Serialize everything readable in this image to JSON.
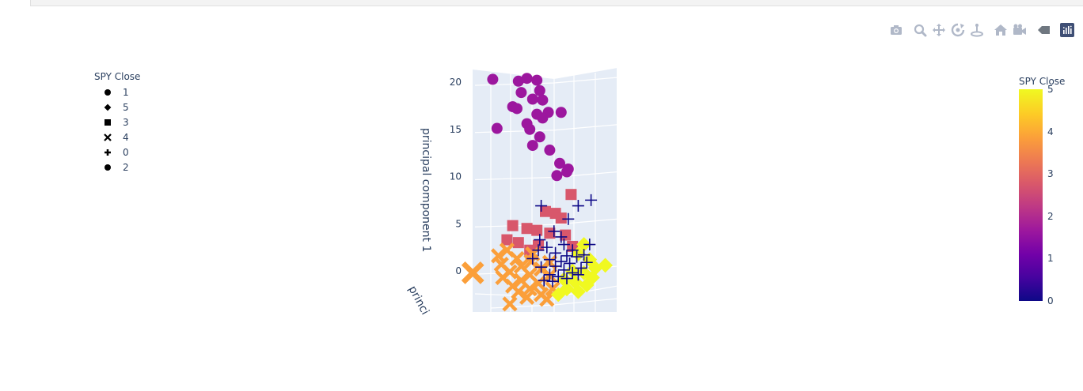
{
  "toolbar": {
    "buttons": [
      {
        "name": "camera-icon",
        "title": "Download plot as a png"
      },
      {
        "name": "zoom-icon",
        "title": "Zoom"
      },
      {
        "name": "pan-icon",
        "title": "Pan"
      },
      {
        "name": "orbit-rotation-icon",
        "title": "Orbital rotation"
      },
      {
        "name": "turntable-rotation-icon",
        "title": "Turntable rotation"
      },
      {
        "name": "home-icon",
        "title": "Reset camera to default"
      },
      {
        "name": "camera-last-save-icon",
        "title": "Reset camera to last save"
      },
      {
        "name": "hover-spike-icon",
        "title": "Toggle show closest data on hover"
      },
      {
        "name": "plotly-logo-icon",
        "title": "Produced with Plotly"
      }
    ],
    "colors": {
      "icon": "#b0b8c8",
      "icon_dark": "#6f7780",
      "logo_bg": "#3f4f75"
    }
  },
  "legend": {
    "title": "SPY Close",
    "items": [
      {
        "label": "1",
        "symbol": "circle"
      },
      {
        "label": "5",
        "symbol": "diamond"
      },
      {
        "label": "3",
        "symbol": "square"
      },
      {
        "label": "4",
        "symbol": "x"
      },
      {
        "label": "0",
        "symbol": "cross"
      },
      {
        "label": "2",
        "symbol": "circle"
      }
    ]
  },
  "colorbar": {
    "title": "SPY Close",
    "ticks": [
      "0",
      "1",
      "2",
      "3",
      "4",
      "5"
    ],
    "range": [
      0,
      5
    ]
  },
  "chart_data": {
    "type": "scatter",
    "title": "",
    "zlabel": "principal component 1",
    "ylabel": "princi",
    "zlim": [
      -4,
      22
    ],
    "z_ticks": [
      "20",
      "15",
      "10",
      "5",
      "0"
    ],
    "grid": true,
    "legend_placement": "left",
    "series": [
      {
        "name": "2",
        "symbol": "circle",
        "color": "#9c179e",
        "points": [
          {
            "z": 20.3,
            "h": 0.18
          },
          {
            "z": 20.1,
            "h": 0.36
          },
          {
            "z": 20.4,
            "h": 0.42
          },
          {
            "z": 20.2,
            "h": 0.49
          },
          {
            "z": 19.1,
            "h": 0.51
          },
          {
            "z": 18.9,
            "h": 0.38
          },
          {
            "z": 18.2,
            "h": 0.46
          },
          {
            "z": 18.1,
            "h": 0.53
          },
          {
            "z": 17.4,
            "h": 0.32
          },
          {
            "z": 17.2,
            "h": 0.35
          },
          {
            "z": 16.8,
            "h": 0.66
          },
          {
            "z": 16.6,
            "h": 0.49
          },
          {
            "z": 16.8,
            "h": 0.57
          },
          {
            "z": 16.2,
            "h": 0.53
          },
          {
            "z": 15.6,
            "h": 0.42
          },
          {
            "z": 15.1,
            "h": 0.21
          },
          {
            "z": 15.0,
            "h": 0.44
          },
          {
            "z": 14.2,
            "h": 0.51
          },
          {
            "z": 13.3,
            "h": 0.46
          },
          {
            "z": 12.8,
            "h": 0.58
          },
          {
            "z": 11.4,
            "h": 0.65
          },
          {
            "z": 10.8,
            "h": 0.71
          },
          {
            "z": 10.5,
            "h": 0.7
          },
          {
            "z": 10.1,
            "h": 0.63
          }
        ]
      },
      {
        "name": "3",
        "symbol": "square",
        "color": "#d8576b",
        "points": [
          {
            "z": 8.1,
            "h": 0.73
          },
          {
            "z": 6.3,
            "h": 0.55
          },
          {
            "z": 6.1,
            "h": 0.62
          },
          {
            "z": 5.6,
            "h": 0.66
          },
          {
            "z": 4.8,
            "h": 0.32
          },
          {
            "z": 4.5,
            "h": 0.42
          },
          {
            "z": 4.3,
            "h": 0.49
          },
          {
            "z": 4.0,
            "h": 0.58
          },
          {
            "z": 3.8,
            "h": 0.69
          },
          {
            "z": 3.3,
            "h": 0.28
          },
          {
            "z": 3.0,
            "h": 0.36
          },
          {
            "z": 2.7,
            "h": 0.5
          },
          {
            "z": 2.6,
            "h": 0.74
          },
          {
            "z": 2.2,
            "h": 0.44
          }
        ]
      },
      {
        "name": "4",
        "symbol": "x",
        "color": "#fb9f3a",
        "points": [
          {
            "z": -0.2,
            "h": 0.04
          },
          {
            "z": 2.2,
            "h": 0.28
          },
          {
            "z": 1.6,
            "h": 0.22
          },
          {
            "z": 1.3,
            "h": 0.35
          },
          {
            "z": 1.0,
            "h": 0.45
          },
          {
            "z": 0.7,
            "h": 0.24
          },
          {
            "z": 0.5,
            "h": 0.38
          },
          {
            "z": 0.2,
            "h": 0.52
          },
          {
            "z": -0.1,
            "h": 0.3
          },
          {
            "z": -0.4,
            "h": 0.44
          },
          {
            "z": -0.7,
            "h": 0.25
          },
          {
            "z": -1.0,
            "h": 0.38
          },
          {
            "z": -1.3,
            "h": 0.5
          },
          {
            "z": -1.6,
            "h": 0.32
          },
          {
            "z": -1.9,
            "h": 0.44
          },
          {
            "z": -2.2,
            "h": 0.36
          },
          {
            "z": -2.5,
            "h": 0.52
          },
          {
            "z": -2.8,
            "h": 0.42
          },
          {
            "z": -3.0,
            "h": 0.56
          },
          {
            "z": 1.8,
            "h": 0.46
          },
          {
            "z": 0.9,
            "h": 0.58
          },
          {
            "z": -0.5,
            "h": 0.58
          },
          {
            "z": -1.9,
            "h": 0.6
          },
          {
            "z": -3.5,
            "h": 0.3
          }
        ]
      },
      {
        "name": "5",
        "symbol": "diamond",
        "color": "#f0f921",
        "points": [
          {
            "z": 0.6,
            "h": 0.97
          },
          {
            "z": 2.8,
            "h": 0.82
          },
          {
            "z": 1.8,
            "h": 0.78
          },
          {
            "z": 1.2,
            "h": 0.86
          },
          {
            "z": 0.3,
            "h": 0.9
          },
          {
            "z": -0.2,
            "h": 0.82
          },
          {
            "z": -0.7,
            "h": 0.88
          },
          {
            "z": -1.2,
            "h": 0.76
          },
          {
            "z": -1.5,
            "h": 0.84
          },
          {
            "z": -1.9,
            "h": 0.7
          },
          {
            "z": -2.2,
            "h": 0.78
          },
          {
            "z": -2.5,
            "h": 0.64
          },
          {
            "z": 0.0,
            "h": 0.74
          },
          {
            "z": -0.9,
            "h": 0.68
          }
        ]
      },
      {
        "name": "0",
        "symbol": "cross",
        "color": "#0d0887",
        "points": [
          {
            "z": 7.5,
            "h": 0.87
          },
          {
            "z": 6.9,
            "h": 0.78
          },
          {
            "z": 6.9,
            "h": 0.52
          },
          {
            "z": 5.5,
            "h": 0.71
          },
          {
            "z": 4.2,
            "h": 0.61
          },
          {
            "z": 3.3,
            "h": 0.51
          },
          {
            "z": 3.6,
            "h": 0.66
          },
          {
            "z": 2.8,
            "h": 0.86
          },
          {
            "z": 2.8,
            "h": 0.68
          },
          {
            "z": 2.5,
            "h": 0.56
          },
          {
            "z": 2.2,
            "h": 0.5
          },
          {
            "z": 1.9,
            "h": 0.62
          },
          {
            "z": 1.6,
            "h": 0.7
          },
          {
            "z": 1.5,
            "h": 0.77
          },
          {
            "z": 1.2,
            "h": 0.58
          },
          {
            "z": 1.0,
            "h": 0.66
          },
          {
            "z": 0.8,
            "h": 0.72
          },
          {
            "z": 0.5,
            "h": 0.62
          },
          {
            "z": 0.3,
            "h": 0.8
          },
          {
            "z": 0.1,
            "h": 0.68
          },
          {
            "z": -0.2,
            "h": 0.74
          },
          {
            "z": -0.4,
            "h": 0.58
          },
          {
            "z": -0.6,
            "h": 0.64
          },
          {
            "z": -0.8,
            "h": 0.7
          },
          {
            "z": -1.0,
            "h": 0.54
          },
          {
            "z": -1.1,
            "h": 0.6
          },
          {
            "z": 1.7,
            "h": 0.82
          },
          {
            "z": 0.9,
            "h": 0.84
          },
          {
            "z": -0.4,
            "h": 0.78
          },
          {
            "z": 2.2,
            "h": 0.74
          },
          {
            "z": 1.3,
            "h": 0.46
          },
          {
            "z": 0.4,
            "h": 0.52
          }
        ]
      }
    ]
  }
}
